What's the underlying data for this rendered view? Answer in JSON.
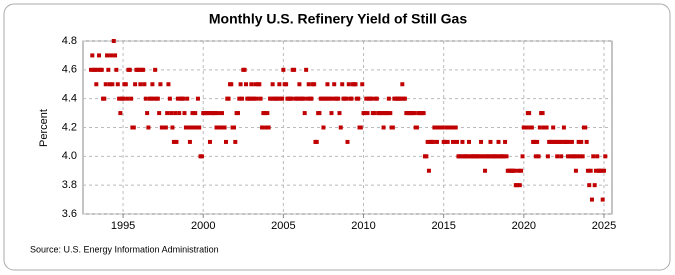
{
  "chart_data": {
    "type": "scatter",
    "title": "Monthly U.S. Refinery Yield of Still Gas",
    "y_label": "Percent",
    "source": "Source: U.S. Energy Information Administration",
    "xlim": [
      1992.5,
      2025.5
    ],
    "xticks": [
      1995,
      2000,
      2005,
      2010,
      2015,
      2020,
      2025
    ],
    "ylim": [
      3.6,
      4.8
    ],
    "yticks": [
      3.6,
      3.8,
      {
        "value": 4,
        "label": "4.0"
      },
      4.2,
      4.4,
      4.6,
      4.8
    ],
    "grid": true,
    "series": [
      {
        "color": "#c00000",
        "x": [
          1993,
          1993.08,
          1993.17,
          1993.25,
          1993.33,
          1993.42,
          1993.5,
          1993.58,
          1993.67,
          1993.75,
          1993.83,
          1993.92,
          1994,
          1994.08,
          1994.17,
          1994.25,
          1994.33,
          1994.42,
          1994.5,
          1994.58,
          1994.67,
          1994.75,
          1994.83,
          1994.92,
          1995,
          1995.08,
          1995.17,
          1995.25,
          1995.33,
          1995.42,
          1995.5,
          1995.58,
          1995.67,
          1995.75,
          1995.83,
          1995.92,
          1996,
          1996.08,
          1996.17,
          1996.25,
          1996.33,
          1996.42,
          1996.5,
          1996.58,
          1996.67,
          1996.75,
          1996.83,
          1996.92,
          1997,
          1997.08,
          1997.17,
          1997.25,
          1997.33,
          1997.42,
          1997.5,
          1997.58,
          1997.67,
          1997.75,
          1997.83,
          1997.92,
          1998,
          1998.08,
          1998.17,
          1998.25,
          1998.33,
          1998.42,
          1998.5,
          1998.58,
          1998.67,
          1998.75,
          1998.83,
          1998.92,
          1999,
          1999.08,
          1999.17,
          1999.25,
          1999.33,
          1999.42,
          1999.5,
          1999.58,
          1999.67,
          1999.75,
          1999.83,
          1999.92,
          2000,
          2000.08,
          2000.17,
          2000.25,
          2000.33,
          2000.42,
          2000.5,
          2000.58,
          2000.67,
          2000.75,
          2000.83,
          2000.92,
          2001,
          2001.08,
          2001.17,
          2001.25,
          2001.33,
          2001.42,
          2001.5,
          2001.58,
          2001.67,
          2001.75,
          2001.83,
          2001.92,
          2002,
          2002.08,
          2002.17,
          2002.25,
          2002.33,
          2002.42,
          2002.5,
          2002.58,
          2002.67,
          2002.75,
          2002.83,
          2002.92,
          2003,
          2003.08,
          2003.17,
          2003.25,
          2003.33,
          2003.42,
          2003.5,
          2003.58,
          2003.67,
          2003.75,
          2003.83,
          2003.92,
          2004,
          2004.08,
          2004.17,
          2004.25,
          2004.33,
          2004.42,
          2004.5,
          2004.58,
          2004.67,
          2004.75,
          2004.83,
          2004.92,
          2005,
          2005.08,
          2005.17,
          2005.25,
          2005.33,
          2005.42,
          2005.5,
          2005.58,
          2005.67,
          2005.75,
          2005.83,
          2005.92,
          2006,
          2006.08,
          2006.17,
          2006.25,
          2006.33,
          2006.42,
          2006.5,
          2006.58,
          2006.67,
          2006.75,
          2006.83,
          2006.92,
          2007,
          2007.08,
          2007.17,
          2007.25,
          2007.33,
          2007.42,
          2007.5,
          2007.58,
          2007.67,
          2007.75,
          2007.83,
          2007.92,
          2008,
          2008.08,
          2008.17,
          2008.25,
          2008.33,
          2008.42,
          2008.5,
          2008.58,
          2008.67,
          2008.75,
          2008.83,
          2008.92,
          2009,
          2009.08,
          2009.17,
          2009.25,
          2009.33,
          2009.42,
          2009.5,
          2009.58,
          2009.67,
          2009.75,
          2009.83,
          2009.92,
          2010,
          2010.08,
          2010.17,
          2010.25,
          2010.33,
          2010.42,
          2010.5,
          2010.58,
          2010.67,
          2010.75,
          2010.83,
          2010.92,
          2011,
          2011.08,
          2011.17,
          2011.25,
          2011.33,
          2011.42,
          2011.5,
          2011.58,
          2011.67,
          2011.75,
          2011.83,
          2011.92,
          2012,
          2012.08,
          2012.17,
          2012.25,
          2012.33,
          2012.42,
          2012.5,
          2012.58,
          2012.67,
          2012.75,
          2012.83,
          2012.92,
          2013,
          2013.08,
          2013.17,
          2013.25,
          2013.33,
          2013.42,
          2013.5,
          2013.58,
          2013.67,
          2013.75,
          2013.83,
          2013.92,
          2014,
          2014.08,
          2014.17,
          2014.25,
          2014.33,
          2014.42,
          2014.5,
          2014.58,
          2014.67,
          2014.75,
          2014.83,
          2014.92,
          2015,
          2015.08,
          2015.17,
          2015.25,
          2015.33,
          2015.42,
          2015.5,
          2015.58,
          2015.67,
          2015.75,
          2015.83,
          2015.92,
          2016,
          2016.08,
          2016.17,
          2016.25,
          2016.33,
          2016.42,
          2016.5,
          2016.58,
          2016.67,
          2016.75,
          2016.83,
          2016.92,
          2017,
          2017.08,
          2017.17,
          2017.25,
          2017.33,
          2017.42,
          2017.5,
          2017.58,
          2017.67,
          2017.75,
          2017.83,
          2017.92,
          2018,
          2018.08,
          2018.17,
          2018.25,
          2018.33,
          2018.42,
          2018.5,
          2018.58,
          2018.67,
          2018.75,
          2018.83,
          2018.92,
          2019,
          2019.08,
          2019.17,
          2019.25,
          2019.33,
          2019.42,
          2019.5,
          2019.58,
          2019.67,
          2019.75,
          2019.83,
          2019.92,
          2020,
          2020.08,
          2020.17,
          2020.25,
          2020.33,
          2020.42,
          2020.5,
          2020.58,
          2020.67,
          2020.75,
          2020.83,
          2020.92,
          2021,
          2021.08,
          2021.17,
          2021.25,
          2021.33,
          2021.42,
          2021.5,
          2021.58,
          2021.67,
          2021.75,
          2021.83,
          2021.92,
          2022,
          2022.08,
          2022.17,
          2022.25,
          2022.33,
          2022.42,
          2022.5,
          2022.58,
          2022.67,
          2022.75,
          2022.83,
          2022.92,
          2023,
          2023.08,
          2023.17,
          2023.25,
          2023.33,
          2023.42,
          2023.5,
          2023.58,
          2023.67,
          2023.75,
          2023.83,
          2023.92,
          2024,
          2024.08,
          2024.17,
          2024.25,
          2024.33,
          2024.42,
          2024.5,
          2024.58,
          2024.67,
          2024.75,
          2024.83,
          2024.92,
          2025,
          2025.08
        ],
        "values": [
          4.6,
          4.7,
          4.6,
          4.6,
          4.5,
          4.6,
          4.7,
          4.6,
          4.6,
          4.4,
          4.4,
          4.5,
          4.7,
          4.6,
          4.5,
          4.7,
          4.5,
          4.8,
          4.7,
          4.6,
          4.5,
          4.4,
          4.3,
          4.4,
          4.4,
          4.5,
          4.5,
          4.4,
          4.6,
          4.6,
          4.4,
          4.2,
          4.2,
          4.5,
          4.6,
          4.6,
          4.6,
          4.5,
          4.6,
          4.6,
          4.5,
          4.4,
          4.3,
          4.2,
          4.4,
          4.4,
          4.5,
          4.4,
          4.6,
          4.4,
          4.4,
          4.3,
          4.5,
          4.2,
          4.2,
          4.2,
          4.2,
          4.3,
          4.5,
          4.4,
          4.3,
          4.2,
          4.1,
          4.3,
          4.1,
          4.4,
          4.3,
          4.4,
          4.4,
          4.4,
          4.3,
          4.2,
          4.4,
          4.2,
          4.1,
          4.2,
          4.3,
          4.2,
          4.3,
          4.2,
          4.4,
          4.2,
          4.0,
          4.0,
          4.3,
          4.3,
          4.3,
          4.3,
          4.3,
          4.1,
          4.3,
          4.3,
          4.3,
          4.3,
          4.2,
          4.3,
          4.2,
          4.2,
          4.3,
          4.2,
          4.2,
          4.1,
          4.4,
          4.4,
          4.5,
          4.5,
          4.2,
          4.2,
          4.1,
          4.3,
          4.3,
          4.4,
          4.5,
          4.4,
          4.6,
          4.6,
          4.5,
          4.4,
          4.4,
          4.4,
          4.5,
          4.4,
          4.4,
          4.5,
          4.4,
          4.5,
          4.5,
          4.4,
          4.2,
          4.3,
          4.3,
          4.2,
          4.3,
          4.2,
          4.4,
          4.4,
          4.5,
          4.4,
          4.4,
          4.4,
          4.4,
          4.5,
          4.4,
          4.4,
          4.6,
          4.5,
          4.5,
          4.4,
          4.4,
          4.4,
          4.4,
          4.6,
          4.6,
          4.4,
          4.4,
          4.4,
          4.5,
          4.4,
          4.4,
          4.4,
          4.3,
          4.6,
          4.4,
          4.5,
          4.4,
          4.4,
          4.5,
          4.5,
          4.1,
          4.1,
          4.3,
          4.3,
          4.4,
          4.4,
          4.2,
          4.4,
          4.4,
          4.5,
          4.4,
          4.4,
          4.3,
          4.4,
          4.5,
          4.4,
          4.4,
          4.4,
          4.3,
          4.2,
          4.5,
          4.4,
          4.4,
          4.4,
          4.1,
          4.5,
          4.4,
          4.4,
          4.5,
          4.5,
          4.5,
          4.4,
          4.4,
          4.2,
          4.2,
          4.5,
          4.3,
          4.3,
          4.4,
          4.3,
          4.4,
          4.4,
          4.4,
          4.3,
          4.3,
          4.4,
          4.4,
          4.3,
          4.3,
          4.3,
          4.3,
          4.2,
          4.3,
          4.3,
          4.3,
          4.4,
          4.3,
          4.2,
          4.2,
          4.4,
          4.4,
          4.4,
          4.4,
          4.4,
          4.4,
          4.5,
          4.4,
          4.4,
          4.3,
          4.3,
          4.3,
          4.3,
          4.3,
          4.3,
          4.3,
          4.2,
          4.2,
          4.3,
          4.3,
          4.3,
          4.3,
          4.3,
          4.0,
          4.0,
          4.1,
          3.9,
          4.1,
          4.1,
          4.1,
          4.2,
          4.2,
          4.1,
          4.2,
          4.2,
          4.2,
          4.2,
          4.1,
          4.1,
          4.2,
          4.1,
          4.2,
          4.2,
          4.2,
          4.1,
          4.2,
          4.2,
          4.1,
          4.0,
          4.0,
          4.0,
          4.1,
          4.0,
          4.0,
          4.0,
          4.0,
          4.1,
          4.0,
          4.0,
          4.0,
          4.0,
          4.0,
          4.0,
          4.0,
          4.0,
          4.1,
          4.0,
          4.0,
          3.9,
          4.0,
          4.0,
          4.0,
          4.1,
          4.0,
          4.0,
          4.0,
          4.0,
          4.0,
          4.1,
          4.0,
          4.0,
          4.0,
          4.0,
          4.1,
          4.0,
          3.9,
          3.9,
          3.9,
          3.9,
          3.9,
          3.9,
          3.8,
          3.8,
          3.9,
          3.8,
          3.9,
          4.0,
          4.2,
          4.2,
          4.2,
          4.3,
          4.3,
          4.2,
          4.2,
          4.1,
          4.1,
          4.0,
          4.1,
          4.0,
          4.2,
          4.3,
          4.3,
          4.2,
          4.2,
          4.2,
          4.0,
          4.1,
          4.1,
          4.1,
          4.2,
          4.1,
          4.1,
          4.0,
          4.1,
          4.1,
          4.0,
          4.1,
          4.2,
          4.1,
          4.1,
          4.0,
          4.1,
          4.0,
          4.1,
          4.0,
          4.0,
          3.9,
          4.0,
          4.1,
          4.0,
          4.1,
          4.0,
          4.2,
          4.2,
          4.1,
          3.9,
          3.8,
          3.9,
          3.7,
          4.0,
          3.8,
          3.9,
          4.0,
          3.9,
          3.9,
          3.9,
          3.7,
          3.9,
          4.0
        ]
      }
    ]
  }
}
